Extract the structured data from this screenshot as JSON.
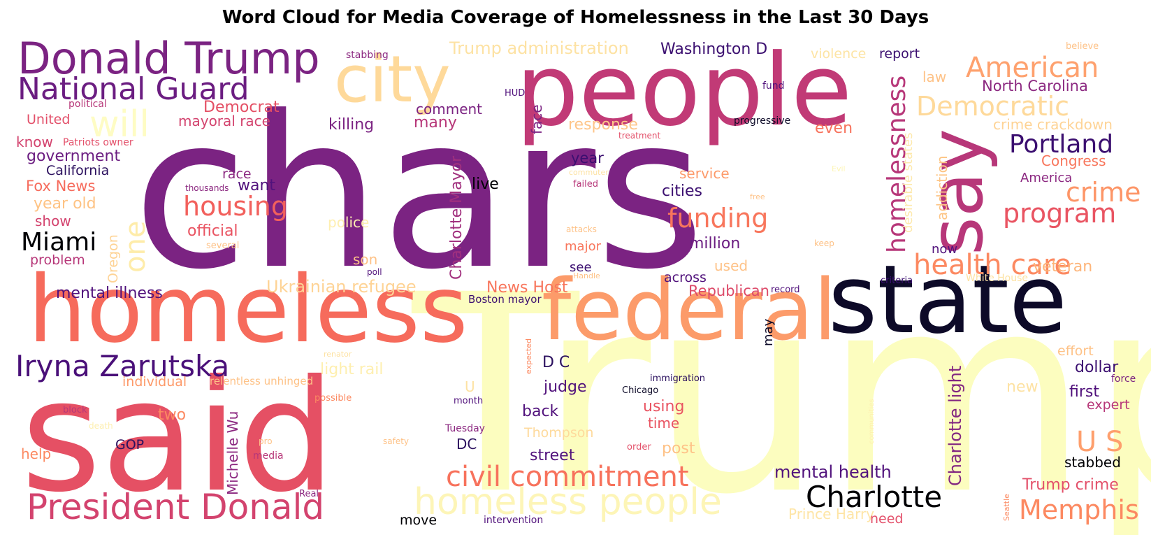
{
  "chart_data": {
    "type": "wordcloud",
    "title": "Word Cloud for Media Coverage of Homelessness in the Last 30 Days",
    "colormap": "magma",
    "words": [
      {
        "text": "chars",
        "weight": 1.0,
        "color": "#7b2382"
      },
      {
        "text": "Trump",
        "weight": 0.95,
        "color": "#fcfdbf"
      },
      {
        "text": "said",
        "weight": 0.9,
        "color": "#e55064"
      },
      {
        "text": "people",
        "weight": 0.6,
        "color": "#c13a76"
      },
      {
        "text": "homeless",
        "weight": 0.58,
        "color": "#f66b5c"
      },
      {
        "text": "state",
        "weight": 0.55,
        "color": "#0d0a28"
      },
      {
        "text": "federal",
        "weight": 0.52,
        "color": "#fc9b6a"
      },
      {
        "text": "city",
        "weight": 0.45,
        "color": "#fed99a"
      },
      {
        "text": "say",
        "weight": 0.42,
        "color": "#b73779"
      },
      {
        "text": "Donald Trump",
        "weight": 0.3,
        "color": "#7b2382"
      },
      {
        "text": "National Guard",
        "weight": 0.26,
        "color": "#6b1d81"
      },
      {
        "text": "President Donald",
        "weight": 0.27,
        "color": "#d3436e"
      },
      {
        "text": "homeless people",
        "weight": 0.28,
        "color": "#fdf5b7"
      },
      {
        "text": "Iryna Zarutska",
        "weight": 0.24,
        "color": "#4a1079"
      },
      {
        "text": "Charlotte",
        "weight": 0.23,
        "color": "#000004"
      },
      {
        "text": "civil commitment",
        "weight": 0.22,
        "color": "#f7725c"
      },
      {
        "text": "will",
        "weight": 0.2,
        "color": "#fefcc4"
      },
      {
        "text": "health care",
        "weight": 0.2,
        "color": "#fc8961"
      },
      {
        "text": "American",
        "weight": 0.2,
        "color": "#fea16e"
      },
      {
        "text": "homelessness",
        "weight": 0.2,
        "color": "#b73779"
      },
      {
        "text": "Memphis",
        "weight": 0.2,
        "color": "#fc8961"
      },
      {
        "text": "Democratic",
        "weight": 0.19,
        "color": "#fed99a"
      },
      {
        "text": "funding",
        "weight": 0.19,
        "color": "#f8765c"
      },
      {
        "text": "housing",
        "weight": 0.19,
        "color": "#f2605c"
      },
      {
        "text": "Portland",
        "weight": 0.18,
        "color": "#3b0f70"
      },
      {
        "text": "program",
        "weight": 0.18,
        "color": "#e95462"
      },
      {
        "text": "crime",
        "weight": 0.17,
        "color": "#fd9567"
      },
      {
        "text": "Miami",
        "weight": 0.17,
        "color": "#000004"
      },
      {
        "text": "one",
        "weight": 0.16,
        "color": "#feecaa"
      },
      {
        "text": "U S",
        "weight": 0.16,
        "color": "#fe9f6d"
      },
      {
        "text": "Charlotte light",
        "weight": 0.12,
        "color": "#822681"
      },
      {
        "text": "Charlotte Mayor",
        "weight": 0.11,
        "color": "#a1307e"
      },
      {
        "text": "Ukrainian refugee",
        "weight": 0.12,
        "color": "#fed395"
      },
      {
        "text": "News Host",
        "weight": 0.11,
        "color": "#f8765c"
      },
      {
        "text": "mental illness",
        "weight": 0.11,
        "color": "#51127c"
      },
      {
        "text": "mental health",
        "weight": 0.11,
        "color": "#51127c"
      },
      {
        "text": "Trump administration",
        "weight": 0.11,
        "color": "#fde2a3"
      },
      {
        "text": "Trump crime",
        "weight": 0.11,
        "color": "#e3506a"
      },
      {
        "text": "Washington D",
        "weight": 0.1,
        "color": "#3b0f70"
      },
      {
        "text": "Democrat",
        "weight": 0.1,
        "color": "#e44f64"
      },
      {
        "text": "mayoral race",
        "weight": 0.1,
        "color": "#d3436e"
      },
      {
        "text": "government",
        "weight": 0.1,
        "color": "#6b1d81"
      },
      {
        "text": "California",
        "weight": 0.09,
        "color": "#2c115f"
      },
      {
        "text": "North Carolina",
        "weight": 0.1,
        "color": "#8c2981"
      },
      {
        "text": "Republican",
        "weight": 0.1,
        "color": "#dd4a69"
      },
      {
        "text": "Michelle Wu",
        "weight": 0.1,
        "color": "#8c2981"
      },
      {
        "text": "light rail",
        "weight": 0.1,
        "color": "#feefb0"
      },
      {
        "text": "Prince Harry",
        "weight": 0.09,
        "color": "#fee5a6"
      },
      {
        "text": "crime crackdown",
        "weight": 0.09,
        "color": "#fed395"
      },
      {
        "text": "desirable states",
        "weight": 0.08,
        "color": "#fde9ad"
      },
      {
        "text": "addiction",
        "weight": 0.08,
        "color": "#fdc585"
      },
      {
        "text": "veteran",
        "weight": 0.1,
        "color": "#fdb57a"
      },
      {
        "text": "Fox News",
        "weight": 0.1,
        "color": "#f66b5c"
      },
      {
        "text": "year old",
        "weight": 0.1,
        "color": "#fec384"
      },
      {
        "text": "killing",
        "weight": 0.1,
        "color": "#7b2382"
      },
      {
        "text": "many",
        "weight": 0.1,
        "color": "#b73779"
      },
      {
        "text": "official",
        "weight": 0.1,
        "color": "#e95462"
      },
      {
        "text": "response",
        "weight": 0.1,
        "color": "#fec589"
      },
      {
        "text": "year",
        "weight": 0.1,
        "color": "#3b0f70"
      },
      {
        "text": "million",
        "weight": 0.1,
        "color": "#6b1d81"
      },
      {
        "text": "cities",
        "weight": 0.1,
        "color": "#3b0f70"
      },
      {
        "text": "service",
        "weight": 0.09,
        "color": "#fd9a6a"
      },
      {
        "text": "even",
        "weight": 0.1,
        "color": "#f7725c"
      },
      {
        "text": "face",
        "weight": 0.09,
        "color": "#7b2382"
      },
      {
        "text": "comment",
        "weight": 0.09,
        "color": "#7b2382"
      },
      {
        "text": "violence",
        "weight": 0.09,
        "color": "#fde4a4"
      },
      {
        "text": "report",
        "weight": 0.09,
        "color": "#3b0f70"
      },
      {
        "text": "law",
        "weight": 0.09,
        "color": "#fec287"
      },
      {
        "text": "Congress",
        "weight": 0.09,
        "color": "#f8765c"
      },
      {
        "text": "America",
        "weight": 0.08,
        "color": "#8c2981"
      },
      {
        "text": "know",
        "weight": 0.09,
        "color": "#d3436e"
      },
      {
        "text": "race",
        "weight": 0.09,
        "color": "#8c2981"
      },
      {
        "text": "want",
        "weight": 0.1,
        "color": "#51127c"
      },
      {
        "text": "live",
        "weight": 0.1,
        "color": "#000004"
      },
      {
        "text": "show",
        "weight": 0.09,
        "color": "#d3436e"
      },
      {
        "text": "problem",
        "weight": 0.09,
        "color": "#b73779"
      },
      {
        "text": "Oregon",
        "weight": 0.09,
        "color": "#fed395"
      },
      {
        "text": "son",
        "weight": 0.09,
        "color": "#fec287"
      },
      {
        "text": "used",
        "weight": 0.09,
        "color": "#fec287"
      },
      {
        "text": "major",
        "weight": 0.08,
        "color": "#f8765c"
      },
      {
        "text": "see",
        "weight": 0.08,
        "color": "#3b0f70"
      },
      {
        "text": "across",
        "weight": 0.08,
        "color": "#51127c"
      },
      {
        "text": "now",
        "weight": 0.08,
        "color": "#51127c"
      },
      {
        "text": "may",
        "weight": 0.08,
        "color": "#0d0a28"
      },
      {
        "text": "D C",
        "weight": 0.1,
        "color": "#2c115f"
      },
      {
        "text": "judge",
        "weight": 0.1,
        "color": "#51127c"
      },
      {
        "text": "back",
        "weight": 0.1,
        "color": "#51127c"
      },
      {
        "text": "using",
        "weight": 0.1,
        "color": "#e95462"
      },
      {
        "text": "time",
        "weight": 0.09,
        "color": "#e95462"
      },
      {
        "text": "post",
        "weight": 0.1,
        "color": "#fec287"
      },
      {
        "text": "street",
        "weight": 0.1,
        "color": "#51127c"
      },
      {
        "text": "Thompson",
        "weight": 0.09,
        "color": "#feda9c"
      },
      {
        "text": "effort",
        "weight": 0.09,
        "color": "#fec287"
      },
      {
        "text": "dollar",
        "weight": 0.1,
        "color": "#3b0f70"
      },
      {
        "text": "force",
        "weight": 0.06,
        "color": "#7b2382"
      },
      {
        "text": "first",
        "weight": 0.1,
        "color": "#51127c"
      },
      {
        "text": "new",
        "weight": 0.1,
        "color": "#fde2a3"
      },
      {
        "text": "expert",
        "weight": 0.09,
        "color": "#b73779"
      },
      {
        "text": "stabbed",
        "weight": 0.09,
        "color": "#000004"
      },
      {
        "text": "need",
        "weight": 0.09,
        "color": "#e3506a"
      },
      {
        "text": "move",
        "weight": 0.09,
        "color": "#000004"
      },
      {
        "text": "individual",
        "weight": 0.09,
        "color": "#fd9a6a"
      },
      {
        "text": "relentless unhinged",
        "weight": 0.07,
        "color": "#fec287"
      },
      {
        "text": "two",
        "weight": 0.1,
        "color": "#fc8961"
      },
      {
        "text": "help",
        "weight": 0.09,
        "color": "#fc8961"
      },
      {
        "text": "GOP",
        "weight": 0.08,
        "color": "#2c115f"
      },
      {
        "text": "DC",
        "weight": 0.09,
        "color": "#2c115f"
      },
      {
        "text": "U",
        "weight": 0.09,
        "color": "#fde2a3"
      },
      {
        "text": "United",
        "weight": 0.09,
        "color": "#e3506a"
      },
      {
        "text": "stabbing",
        "weight": 0.06,
        "color": "#8c2981"
      },
      {
        "text": "political",
        "weight": 0.06,
        "color": "#b73779"
      },
      {
        "text": "Patriots owner",
        "weight": 0.06,
        "color": "#e3506a"
      },
      {
        "text": "HUD",
        "weight": 0.05,
        "color": "#51127c"
      },
      {
        "text": "fund",
        "weight": 0.05,
        "color": "#51127c"
      },
      {
        "text": "progressive",
        "weight": 0.06,
        "color": "#0d0a28"
      },
      {
        "text": "treatment",
        "weight": 0.05,
        "color": "#e3506a"
      },
      {
        "text": "believe",
        "weight": 0.05,
        "color": "#fec287"
      },
      {
        "text": "thousands",
        "weight": 0.05,
        "color": "#8c2981"
      },
      {
        "text": "commuter",
        "weight": 0.05,
        "color": "#fde2a3"
      },
      {
        "text": "failed",
        "weight": 0.05,
        "color": "#b73779"
      },
      {
        "text": "Evil",
        "weight": 0.04,
        "color": "#fdf5b7"
      },
      {
        "text": "free",
        "weight": 0.04,
        "color": "#fec287"
      },
      {
        "text": "police",
        "weight": 0.08,
        "color": "#feefb0"
      },
      {
        "text": "attacks",
        "weight": 0.05,
        "color": "#fec287"
      },
      {
        "text": "keep",
        "weight": 0.05,
        "color": "#fec287"
      },
      {
        "text": "several",
        "weight": 0.05,
        "color": "#fec287"
      },
      {
        "text": "poll",
        "weight": 0.05,
        "color": "#51127c"
      },
      {
        "text": "Handle",
        "weight": 0.04,
        "color": "#fec287"
      },
      {
        "text": "record",
        "weight": 0.05,
        "color": "#51127c"
      },
      {
        "text": "criteria",
        "weight": 0.05,
        "color": "#3b0f70"
      },
      {
        "text": "White House",
        "weight": 0.05,
        "color": "#fde2a3"
      },
      {
        "text": "Boston mayor",
        "weight": 0.06,
        "color": "#3b0f70"
      },
      {
        "text": "renator",
        "weight": 0.04,
        "color": "#fde2a3"
      },
      {
        "text": "expected",
        "weight": 0.04,
        "color": "#fc8961"
      },
      {
        "text": "immigration",
        "weight": 0.05,
        "color": "#2c115f"
      },
      {
        "text": "Chicago",
        "weight": 0.05,
        "color": "#0d0a28"
      },
      {
        "text": "block",
        "weight": 0.05,
        "color": "#b73779"
      },
      {
        "text": "death",
        "weight": 0.05,
        "color": "#feefb0"
      },
      {
        "text": "possible",
        "weight": 0.05,
        "color": "#fc8961"
      },
      {
        "text": "month",
        "weight": 0.05,
        "color": "#51127c"
      },
      {
        "text": "Tuesday",
        "weight": 0.06,
        "color": "#8c2981"
      },
      {
        "text": "pro",
        "weight": 0.05,
        "color": "#fec287"
      },
      {
        "text": "safety",
        "weight": 0.05,
        "color": "#fec287"
      },
      {
        "text": "order",
        "weight": 0.05,
        "color": "#e3506a"
      },
      {
        "text": "media",
        "weight": 0.06,
        "color": "#b73779"
      },
      {
        "text": "Real",
        "weight": 0.05,
        "color": "#8c2981"
      },
      {
        "text": "intervention",
        "weight": 0.06,
        "color": "#51127c"
      },
      {
        "text": "communities",
        "weight": 0.04,
        "color": "#feefb0"
      },
      {
        "text": "Seattle",
        "weight": 0.04,
        "color": "#fc8961"
      }
    ]
  }
}
